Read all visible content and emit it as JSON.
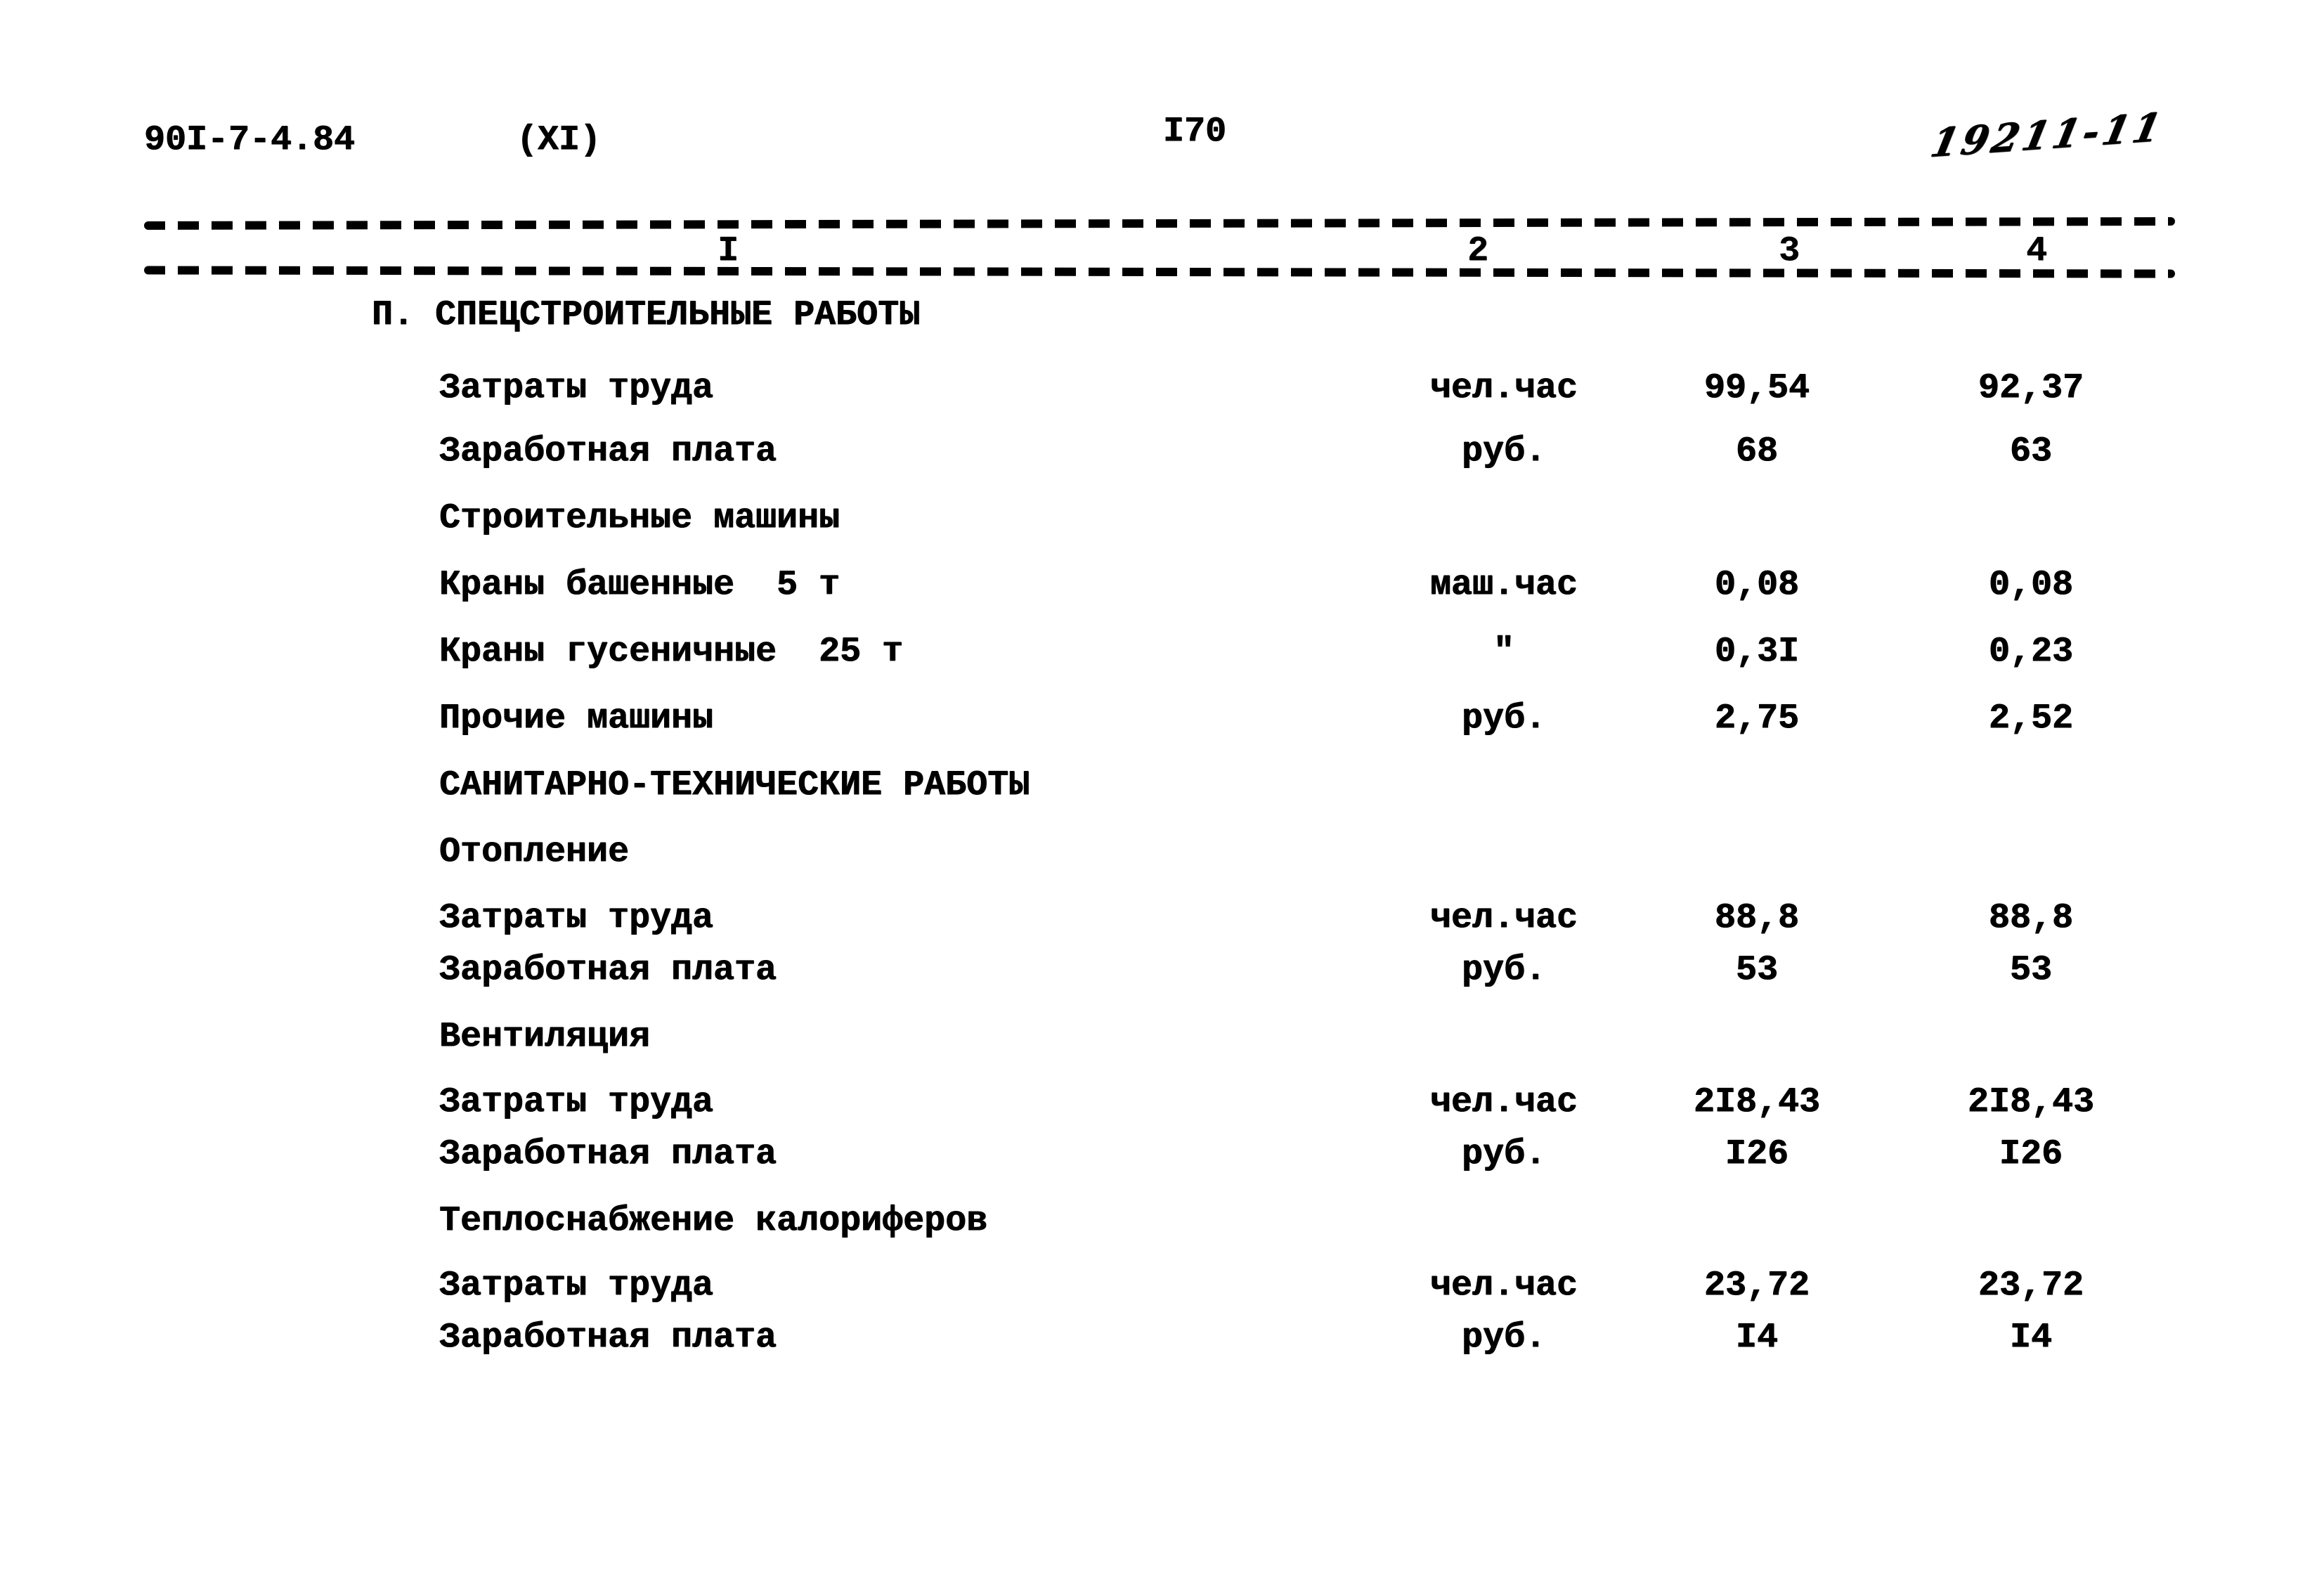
{
  "header": {
    "doc_number": "90I-7-4.84",
    "sheet_ref": "(XI)",
    "page_number": "I70",
    "handwritten_ref": "19211-11"
  },
  "column_headers": {
    "c1": "I",
    "c2": "2",
    "c3": "3",
    "c4": "4"
  },
  "table": {
    "rows": [
      {
        "type": "section",
        "label": "П. СПЕЦСТРОИТЕЛЬНЫЕ РАБОТЫ"
      },
      {
        "type": "item",
        "label": "Затраты труда",
        "unit": "чел.час",
        "v1": "99,54",
        "v2": "92,37"
      },
      {
        "type": "item",
        "label": "Заработная плата",
        "unit": "руб.",
        "v1": "68",
        "v2": "63"
      },
      {
        "type": "subhead",
        "label": "Строительные машины"
      },
      {
        "type": "item",
        "label": "Краны башенные  5 т",
        "unit": "маш.час",
        "v1": "0,08",
        "v2": "0,08"
      },
      {
        "type": "item",
        "label": "Краны гусеничные  25 т",
        "unit": "\"",
        "v1": "0,3I",
        "v2": "0,23"
      },
      {
        "type": "item",
        "label": "Прочие машины",
        "unit": "руб.",
        "v1": "2,75",
        "v2": "2,52"
      },
      {
        "type": "section",
        "label": "САНИТАРНО-ТЕХНИЧЕСКИЕ РАБОТЫ"
      },
      {
        "type": "subhead",
        "label": "Отопление"
      },
      {
        "type": "item",
        "label": "Затраты труда",
        "unit": "чел.час",
        "v1": "88,8",
        "v2": "88,8"
      },
      {
        "type": "item",
        "label": "Заработная плата",
        "unit": "руб.",
        "v1": "53",
        "v2": "53"
      },
      {
        "type": "subhead",
        "label": "Вентиляция"
      },
      {
        "type": "item",
        "label": "Затраты труда",
        "unit": "чел.час",
        "v1": "2I8,43",
        "v2": "2I8,43"
      },
      {
        "type": "item",
        "label": "Заработная плата",
        "unit": "руб.",
        "v1": "I26",
        "v2": "I26"
      },
      {
        "type": "subhead",
        "label": "Теплоснабжение калориферов"
      },
      {
        "type": "item",
        "label": "Затраты труда",
        "unit": "чел.час",
        "v1": "23,72",
        "v2": "23,72"
      },
      {
        "type": "item",
        "label": "Заработная плата",
        "unit": "руб.",
        "v1": "I4",
        "v2": "I4"
      }
    ]
  },
  "colors": {
    "ink": "#000000",
    "paper": "#ffffff"
  }
}
